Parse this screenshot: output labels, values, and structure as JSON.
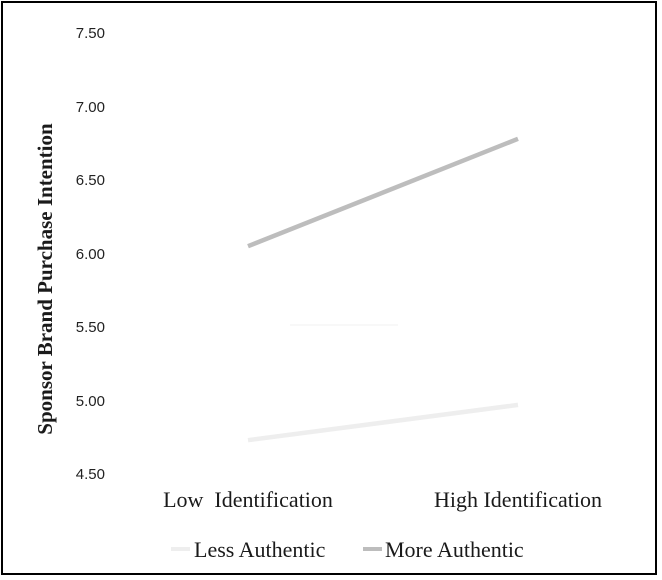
{
  "chart_data": {
    "type": "line",
    "title": "",
    "xlabel": "",
    "ylabel": "Sponsor Brand Purchase Intention",
    "categories": [
      "Low  Identification",
      "High Identification"
    ],
    "ylim": [
      4.5,
      7.5
    ],
    "yticks": [
      "7.50",
      "7.00",
      "6.50",
      "6.00",
      "5.50",
      "5.00",
      "4.50"
    ],
    "grid": false,
    "legend_position": "bottom",
    "series": [
      {
        "name": "Less Authentic",
        "values": [
          4.73,
          4.97
        ],
        "color": "#eeeeee"
      },
      {
        "name": "More Authentic",
        "values": [
          6.05,
          6.78
        ],
        "color": "#bdbdbd"
      }
    ]
  }
}
